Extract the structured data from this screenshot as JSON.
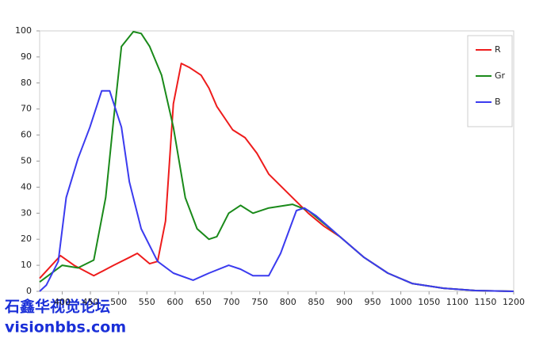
{
  "chart_data": {
    "type": "line",
    "xlim": [
      360,
      1200
    ],
    "xticks": [
      400,
      450,
      500,
      550,
      600,
      650,
      700,
      750,
      800,
      850,
      900,
      950,
      1000,
      1050,
      1100,
      1150,
      1200
    ],
    "ylim": [
      0,
      100
    ],
    "yticks": [
      0,
      10,
      20,
      30,
      40,
      50,
      60,
      70,
      80,
      90,
      100
    ],
    "grid": false,
    "legend": "top-right",
    "series": [
      {
        "name": "R",
        "color": "#ee1c1c",
        "x": [
          360,
          397,
          421,
          456,
          491,
          519,
          533,
          555,
          569,
          583,
          597,
          611,
          625,
          646,
          660,
          674,
          702,
          724,
          745,
          766,
          808,
          836,
          864,
          892,
          935,
          977,
          1020,
          1076,
          1132,
          1200
        ],
        "values": [
          5,
          13.7,
          10,
          6,
          10,
          13,
          14.6,
          10.6,
          11.5,
          27,
          72,
          87.5,
          86,
          83,
          78,
          71,
          62,
          59,
          53,
          45,
          36,
          30,
          25,
          21,
          13,
          7,
          3,
          1.2,
          0.3,
          0
        ]
      },
      {
        "name": "Gr",
        "color": "#1a8a1a",
        "x": [
          360,
          400,
          428,
          456,
          477,
          491,
          505,
          526,
          540,
          555,
          576,
          597,
          618,
          639,
          660,
          674,
          695,
          716,
          738,
          766,
          808,
          836,
          864,
          892,
          935,
          977,
          1020,
          1076,
          1132,
          1200
        ],
        "values": [
          3.6,
          10,
          9,
          12,
          36,
          66,
          94,
          99.7,
          99,
          94,
          83,
          63,
          36,
          24,
          20,
          21,
          30,
          33,
          30,
          32,
          33.4,
          31,
          26,
          21,
          13,
          7,
          3,
          1.2,
          0.3,
          0
        ]
      },
      {
        "name": "B",
        "color": "#3b3bef",
        "x": [
          360,
          372,
          393,
          407,
          428,
          449,
          470,
          484,
          505,
          519,
          540,
          569,
          597,
          632,
          660,
          695,
          716,
          738,
          766,
          787,
          815,
          829,
          850,
          871,
          892,
          935,
          977,
          1020,
          1076,
          1132,
          1200
        ],
        "values": [
          0,
          2.4,
          11.5,
          36,
          51,
          63,
          77,
          77,
          63,
          42,
          24,
          11.5,
          7,
          4.3,
          7,
          10,
          8.5,
          6,
          6,
          14.6,
          31,
          32,
          29,
          25,
          21,
          13,
          7,
          3,
          1.2,
          0.3,
          0
        ]
      }
    ]
  },
  "watermark": {
    "title": "石鑫华视觉论坛",
    "url": "visionbbs.com"
  }
}
